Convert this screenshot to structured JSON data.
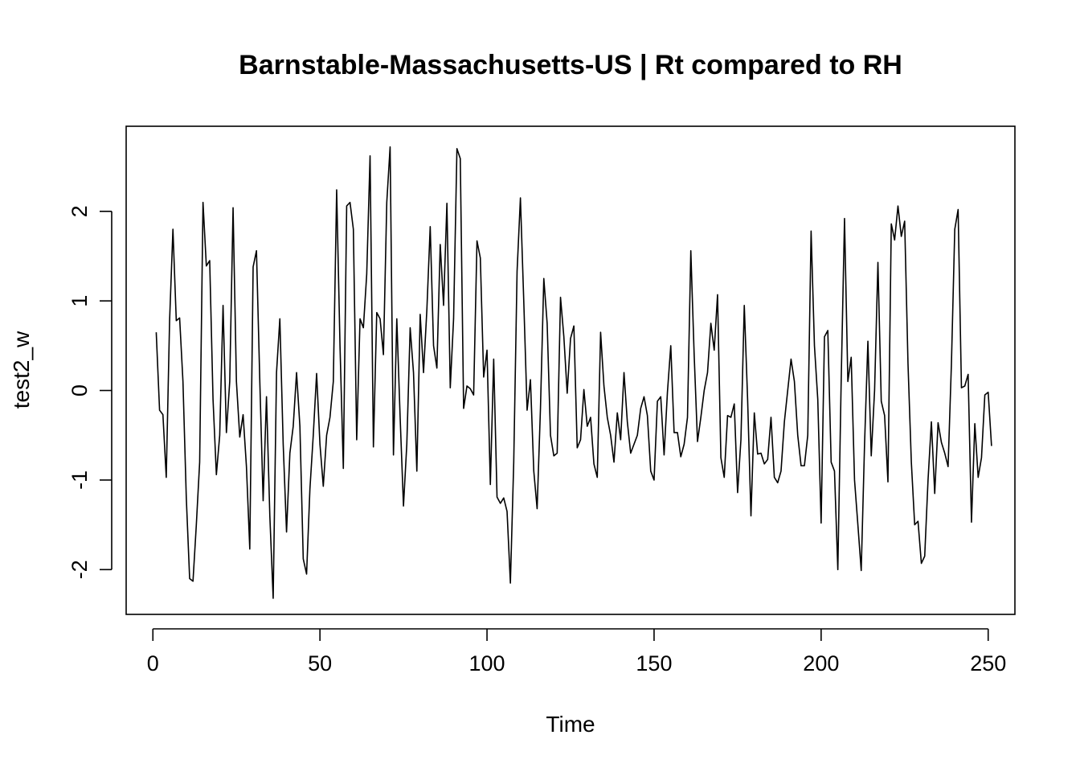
{
  "chart_data": {
    "type": "line",
    "title": "Barnstable-Massachusetts-US | Rt compared to RH",
    "xlabel": "Time",
    "ylabel": "test2_w",
    "xlim": [
      -8,
      258
    ],
    "ylim": [
      -2.5,
      2.95
    ],
    "x_ticks": [
      0,
      50,
      100,
      150,
      200,
      250
    ],
    "x_tick_labels": [
      "0",
      "50",
      "100",
      "150",
      "200",
      "250"
    ],
    "y_ticks": [
      -2,
      -1,
      0,
      1,
      2
    ],
    "y_tick_labels": [
      "-2",
      "-1",
      "0",
      "1",
      "2"
    ],
    "grid": false,
    "legend": "none",
    "x_start": 1,
    "x_step": 1,
    "values": [
      0.65,
      -0.22,
      -0.27,
      -0.97,
      0.78,
      1.8,
      0.78,
      0.81,
      0.1,
      -1.2,
      -2.1,
      -2.13,
      -1.5,
      -0.8,
      2.1,
      1.39,
      1.45,
      -0.1,
      -0.94,
      -0.5,
      0.95,
      -0.47,
      0.1,
      2.04,
      0.1,
      -0.52,
      -0.27,
      -0.85,
      -1.77,
      1.38,
      1.56,
      0.1,
      -1.23,
      -0.07,
      -1.4,
      -2.32,
      0.2,
      0.8,
      -0.6,
      -1.58,
      -0.7,
      -0.4,
      0.2,
      -0.4,
      -1.88,
      -2.05,
      -1.1,
      -0.5,
      0.19,
      -0.6,
      -1.07,
      -0.5,
      -0.3,
      0.1,
      2.24,
      0.5,
      -0.87,
      2.06,
      2.1,
      1.8,
      -0.55,
      0.8,
      0.7,
      1.3,
      2.62,
      -0.63,
      0.87,
      0.8,
      0.4,
      2.1,
      2.72,
      -0.72,
      0.8,
      -0.3,
      -1.29,
      -0.6,
      0.7,
      0.2,
      -0.9,
      0.85,
      0.2,
      0.9,
      1.83,
      0.5,
      0.25,
      1.63,
      0.95,
      2.09,
      0.03,
      0.8,
      2.7,
      2.59,
      -0.2,
      0.05,
      0.02,
      -0.05,
      1.67,
      1.48,
      0.15,
      0.45,
      -1.05,
      0.35,
      -1.19,
      -1.26,
      -1.2,
      -1.35,
      -2.15,
      -0.8,
      1.33,
      2.15,
      1.0,
      -0.22,
      0.12,
      -0.9,
      -1.32,
      -0.2,
      1.25,
      0.75,
      -0.5,
      -0.73,
      -0.7,
      1.04,
      0.6,
      -0.03,
      0.58,
      0.72,
      -0.64,
      -0.55,
      0.01,
      -0.4,
      -0.3,
      -0.82,
      -0.97,
      0.65,
      0.05,
      -0.3,
      -0.5,
      -0.8,
      -0.25,
      -0.55,
      0.2,
      -0.35,
      -0.7,
      -0.6,
      -0.5,
      -0.2,
      -0.07,
      -0.28,
      -0.9,
      -1.0,
      -0.12,
      -0.07,
      -0.72,
      -0.02,
      0.5,
      -0.47,
      -0.47,
      -0.74,
      -0.6,
      -0.3,
      1.56,
      0.4,
      -0.57,
      -0.3,
      0.0,
      0.2,
      0.75,
      0.45,
      1.07,
      -0.75,
      -0.97,
      -0.28,
      -0.3,
      -0.15,
      -1.14,
      -0.55,
      0.95,
      -0.1,
      -1.4,
      -0.25,
      -0.71,
      -0.7,
      -0.82,
      -0.77,
      -0.3,
      -0.97,
      -1.03,
      -0.9,
      -0.35,
      0.0,
      0.35,
      0.1,
      -0.5,
      -0.84,
      -0.84,
      -0.5,
      1.78,
      0.5,
      -0.1,
      -1.48,
      0.6,
      0.67,
      -0.8,
      -0.9,
      -2.0,
      0.1,
      1.92,
      0.1,
      0.37,
      -1.0,
      -1.5,
      -2.01,
      -0.6,
      0.55,
      -0.73,
      0.0,
      1.43,
      -0.12,
      -0.28,
      -1.02,
      1.86,
      1.68,
      2.06,
      1.72,
      1.89,
      0.3,
      -0.8,
      -1.5,
      -1.46,
      -1.93,
      -1.85,
      -1.0,
      -0.35,
      -1.15,
      -0.36,
      -0.58,
      -0.7,
      -0.85,
      0.3,
      1.8,
      2.02,
      0.03,
      0.05,
      0.18,
      -1.47,
      -0.37,
      -0.97,
      -0.75,
      -0.05,
      -0.02,
      -0.62
    ]
  }
}
